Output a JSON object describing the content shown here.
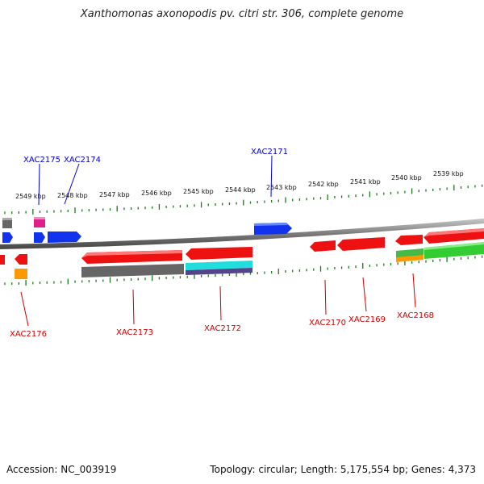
{
  "title": "Xanthomonas axonopodis pv. citri str. 306, complete genome",
  "footer": {
    "accession": "Accession: NC_003919",
    "summary": "Topology: circular; Length: 5,175,554 bp; Genes: 4,373"
  },
  "scale_labels": [
    "2549 kbp",
    "2548 kbp",
    "2547 kbp",
    "2546 kbp",
    "2545 kbp",
    "2544 kbp",
    "2543 kbp",
    "2542 kbp",
    "2541 kbp",
    "2540 kbp",
    "2539 kbp"
  ],
  "gene_labels_forward": [
    "XAC2175",
    "XAC2174",
    "XAC2171"
  ],
  "gene_labels_reverse": [
    "XAC2176",
    "XAC2173",
    "XAC2172",
    "XAC2170",
    "XAC2169",
    "XAC2168"
  ],
  "colors": {
    "forward_label": "#0000cc",
    "reverse_label": "#cc0000",
    "tick": "#1a7a1a",
    "backbone": "#7a7a7a",
    "red": "#ee1111",
    "blue": "#1133ee",
    "gray": "#666666",
    "magenta": "#e0208a",
    "orange": "#ff9900",
    "cyan": "#22dddd",
    "purple": "#55448a",
    "green": "#33cc33"
  }
}
